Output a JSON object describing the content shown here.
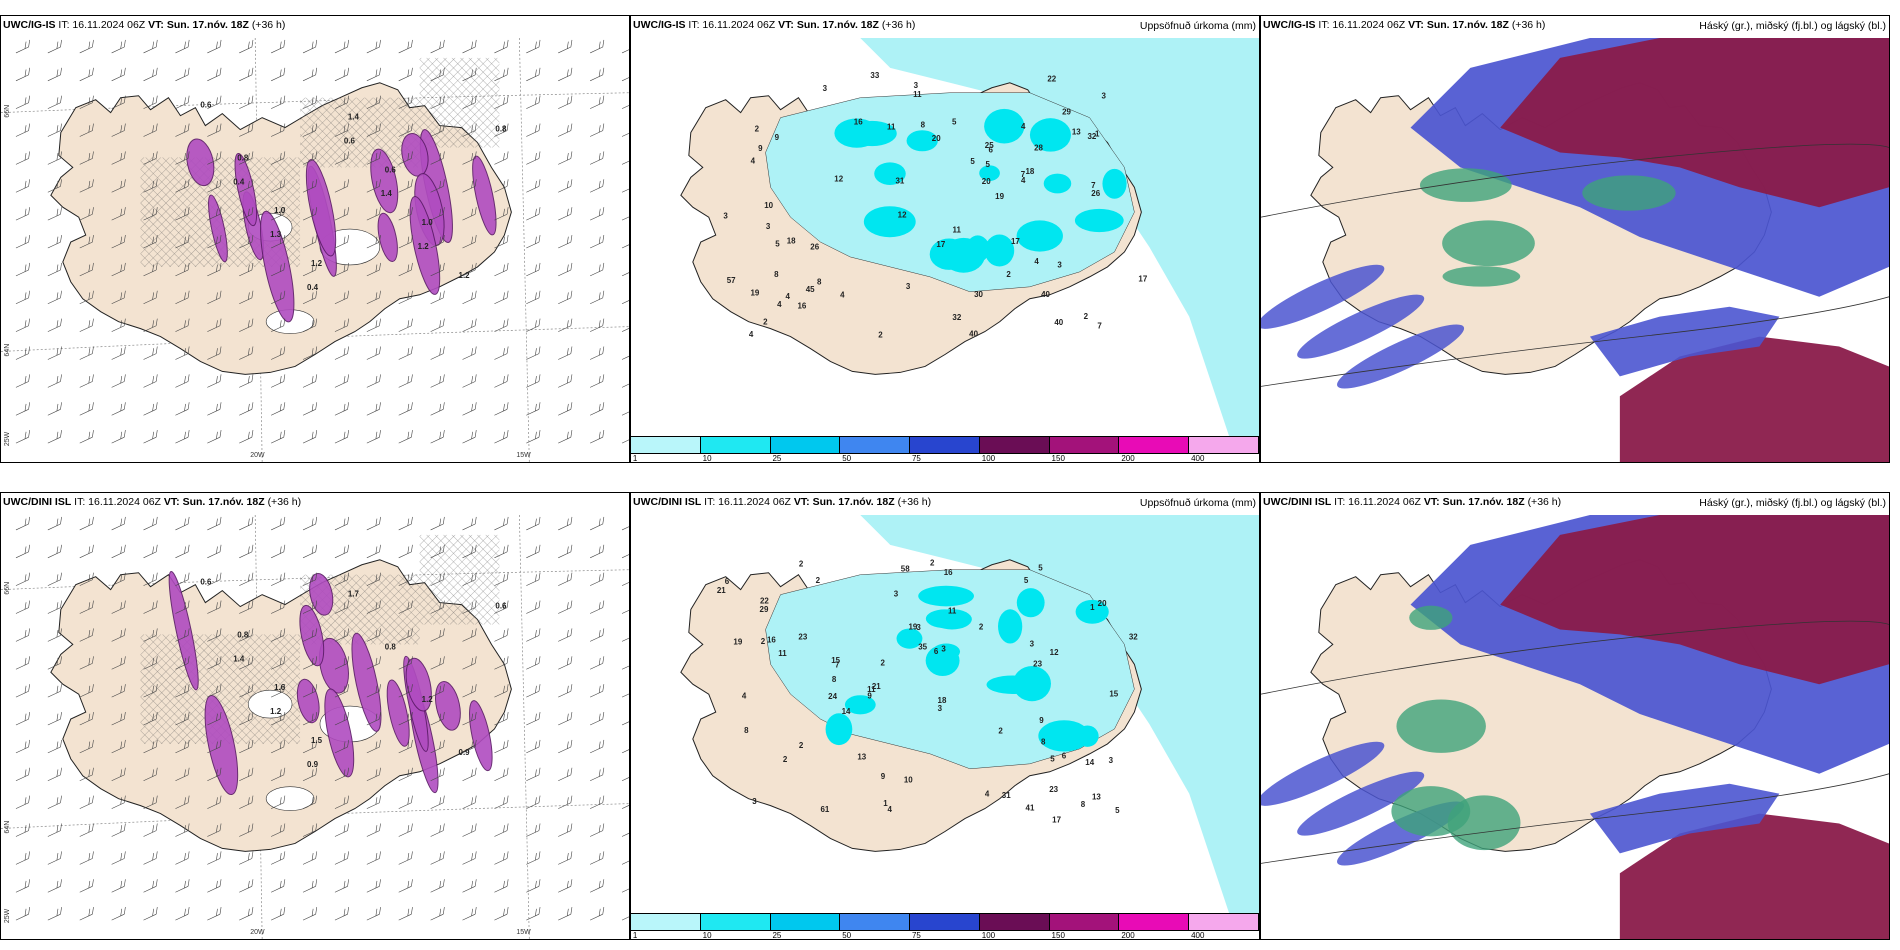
{
  "colors": {
    "land": "#f3e3d1",
    "coast": "#222222",
    "precip_light": "#aef2f6",
    "precip_med": "#00e6f0",
    "purple": "#b04cc0",
    "deep_red": "#8a1b4a",
    "blue": "#4b55d0",
    "green": "#3ea37a"
  },
  "rows": [
    {
      "model": "UWC/IG-IS",
      "wind_title_extra": "IT: 16.11.2024 06Z VT: Sun. 17.nóv. 18Z (+36 h)",
      "precip": {
        "model": "UWC/IG-IS",
        "it": "IT: 16.11.2024 06Z",
        "vt_label": "VT:",
        "vt": "Sun. 17.nóv. 18Z",
        "lead": "(+36 h)",
        "right_title": "Uppsöfnuð úrkoma (mm)"
      },
      "cloud": {
        "model": "UWC/IG-IS",
        "it": "IT: 16.11.2024 06Z",
        "vt_label": "VT:",
        "vt": "Sun. 17.nóv. 18Z",
        "lead": "(+36 h)",
        "right_title": "Háský (gr.), miðský (fj.bl.) og lágský (bl.)"
      },
      "wind": {
        "model": "UWC/IG-IS",
        "it": "IT: 16.11.2024 06Z",
        "vt_label": "VT:",
        "vt": "Sun. 17.nóv. 18Z",
        "lead": "(+36 h)"
      },
      "lat_labels": [
        "66N",
        "64N",
        "25W"
      ],
      "lon_labels": [
        "20W",
        "15W"
      ],
      "precip_numbers": [
        "2",
        "4",
        "4",
        "4",
        "5",
        "16",
        "17",
        "17",
        "26",
        "31",
        "40",
        "32",
        "40",
        "28",
        "11",
        "32",
        "22",
        "45",
        "4",
        "3",
        "2",
        "18",
        "29",
        "13",
        "8",
        "8",
        "11",
        "19",
        "33",
        "19",
        "30",
        "40",
        "57",
        "16",
        "9",
        "25",
        "4",
        "20",
        "26",
        "11",
        "17",
        "9",
        "12",
        "6",
        "7",
        "5",
        "3",
        "12",
        "10",
        "20",
        "18",
        "3",
        "2",
        "4",
        "7",
        "7",
        "3",
        "4",
        "8",
        "2",
        "2",
        "3",
        "5",
        "3",
        "3",
        "5",
        "4",
        "1"
      ],
      "wind_numbers": [
        "0.6",
        "0.8",
        "1.0",
        "1.2",
        "1.4",
        "0.6",
        "1.0",
        "1.2",
        "0.8",
        "0.4",
        "1.3",
        "0.4",
        "0.6",
        "1.4",
        "1.2"
      ]
    },
    {
      "model": "UWC/DINI ISL",
      "precip": {
        "model": "UWC/DINI ISL",
        "it": "IT: 16.11.2024 06Z",
        "vt_label": "VT:",
        "vt": "Sun. 17.nóv. 18Z",
        "lead": "(+36 h)",
        "right_title": "Uppsöfnuð úrkoma (mm)"
      },
      "cloud": {
        "model": "UWC/DINI ISL",
        "it": "IT: 16.11.2024 06Z",
        "vt_label": "VT:",
        "vt": "Sun. 17.nóv. 18Z",
        "lead": "(+36 h)",
        "right_title": "Háský (gr.), miðský (fj.bl.) og lágský (bl.)"
      },
      "wind": {
        "model": "UWC/DINI ISL",
        "it": "IT: 16.11.2024 06Z",
        "vt_label": "VT:",
        "vt": "Sun. 17.nóv. 18Z",
        "lead": "(+36 h)"
      },
      "lat_labels": [
        "66N",
        "64N",
        "25W"
      ],
      "lon_labels": [
        "20W",
        "15W"
      ],
      "precip_numbers": [
        "2",
        "4",
        "3",
        "4",
        "2",
        "2",
        "4",
        "2",
        "2",
        "6",
        "3",
        "8",
        "5",
        "2",
        "2",
        "21",
        "19",
        "35",
        "23",
        "16",
        "29",
        "14",
        "21",
        "41",
        "61",
        "58",
        "31",
        "32",
        "23",
        "15",
        "17",
        "24",
        "14",
        "19",
        "13",
        "12",
        "8",
        "7",
        "11",
        "23",
        "10",
        "15",
        "9",
        "11",
        "6",
        "3",
        "3",
        "9",
        "18",
        "16",
        "20",
        "9",
        "13",
        "5",
        "6",
        "22",
        "8",
        "8",
        "11",
        "5",
        "5",
        "3",
        "2",
        "1",
        "1",
        "2",
        "3",
        "3"
      ],
      "wind_numbers": [
        "0.6",
        "0.8",
        "1.6",
        "1.5",
        "1.7",
        "0.8",
        "1.2",
        "0.9",
        "0.6",
        "1.4",
        "1.2",
        "0.9"
      ]
    }
  ],
  "legend": {
    "labels": [
      "1",
      "10",
      "25",
      "50",
      "75",
      "100",
      "150",
      "200",
      "400"
    ],
    "colors": [
      "#b9f6fa",
      "#1fe8f2",
      "#00c8ee",
      "#3f86f0",
      "#2845cf",
      "#6a0d55",
      "#a3127a",
      "#e80bb6",
      "#f5a8ec"
    ]
  }
}
